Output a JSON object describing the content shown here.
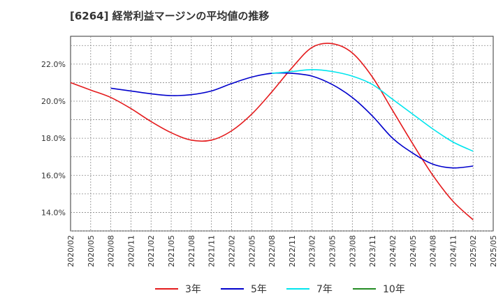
{
  "chart_data": {
    "type": "line",
    "title": "[6264]  経常利益マージンの平均値の推移",
    "xlabel": "",
    "ylabel": "",
    "x": [
      "2020/02",
      "2020/05",
      "2020/08",
      "2020/11",
      "2021/02",
      "2021/05",
      "2021/08",
      "2021/11",
      "2022/02",
      "2022/05",
      "2022/08",
      "2022/11",
      "2023/02",
      "2023/05",
      "2023/08",
      "2023/11",
      "2024/02",
      "2024/05",
      "2024/08",
      "2024/11",
      "2025/02",
      "2025/05"
    ],
    "yticks": [
      "14.0%",
      "16.0%",
      "18.0%",
      "20.0%",
      "22.0%"
    ],
    "ylim": [
      13.0,
      23.5
    ],
    "grid": true,
    "legend_position": "bottom",
    "series": [
      {
        "name": "3年",
        "color": "#e41a1c",
        "values": [
          21.0,
          20.6,
          20.2,
          19.6,
          18.9,
          18.3,
          17.9,
          17.9,
          18.4,
          19.3,
          20.5,
          21.8,
          22.9,
          23.1,
          22.6,
          21.3,
          19.5,
          17.7,
          16.0,
          14.6,
          13.6,
          null
        ]
      },
      {
        "name": "5年",
        "color": "#0000cc",
        "values": [
          null,
          null,
          20.7,
          20.55,
          20.4,
          20.3,
          20.35,
          20.55,
          20.95,
          21.3,
          21.5,
          21.5,
          21.35,
          20.9,
          20.2,
          19.2,
          18.0,
          17.2,
          16.6,
          16.4,
          16.5,
          null
        ]
      },
      {
        "name": "7年",
        "color": "#00e5ee",
        "values": [
          null,
          null,
          null,
          null,
          null,
          null,
          null,
          null,
          null,
          null,
          21.5,
          21.6,
          21.7,
          21.6,
          21.35,
          20.9,
          20.1,
          19.3,
          18.5,
          17.8,
          17.3,
          null
        ]
      },
      {
        "name": "10年",
        "color": "#228b22",
        "values": [
          null,
          null,
          null,
          null,
          null,
          null,
          null,
          null,
          null,
          null,
          null,
          null,
          null,
          null,
          null,
          null,
          null,
          null,
          null,
          null,
          null,
          null
        ]
      }
    ]
  }
}
